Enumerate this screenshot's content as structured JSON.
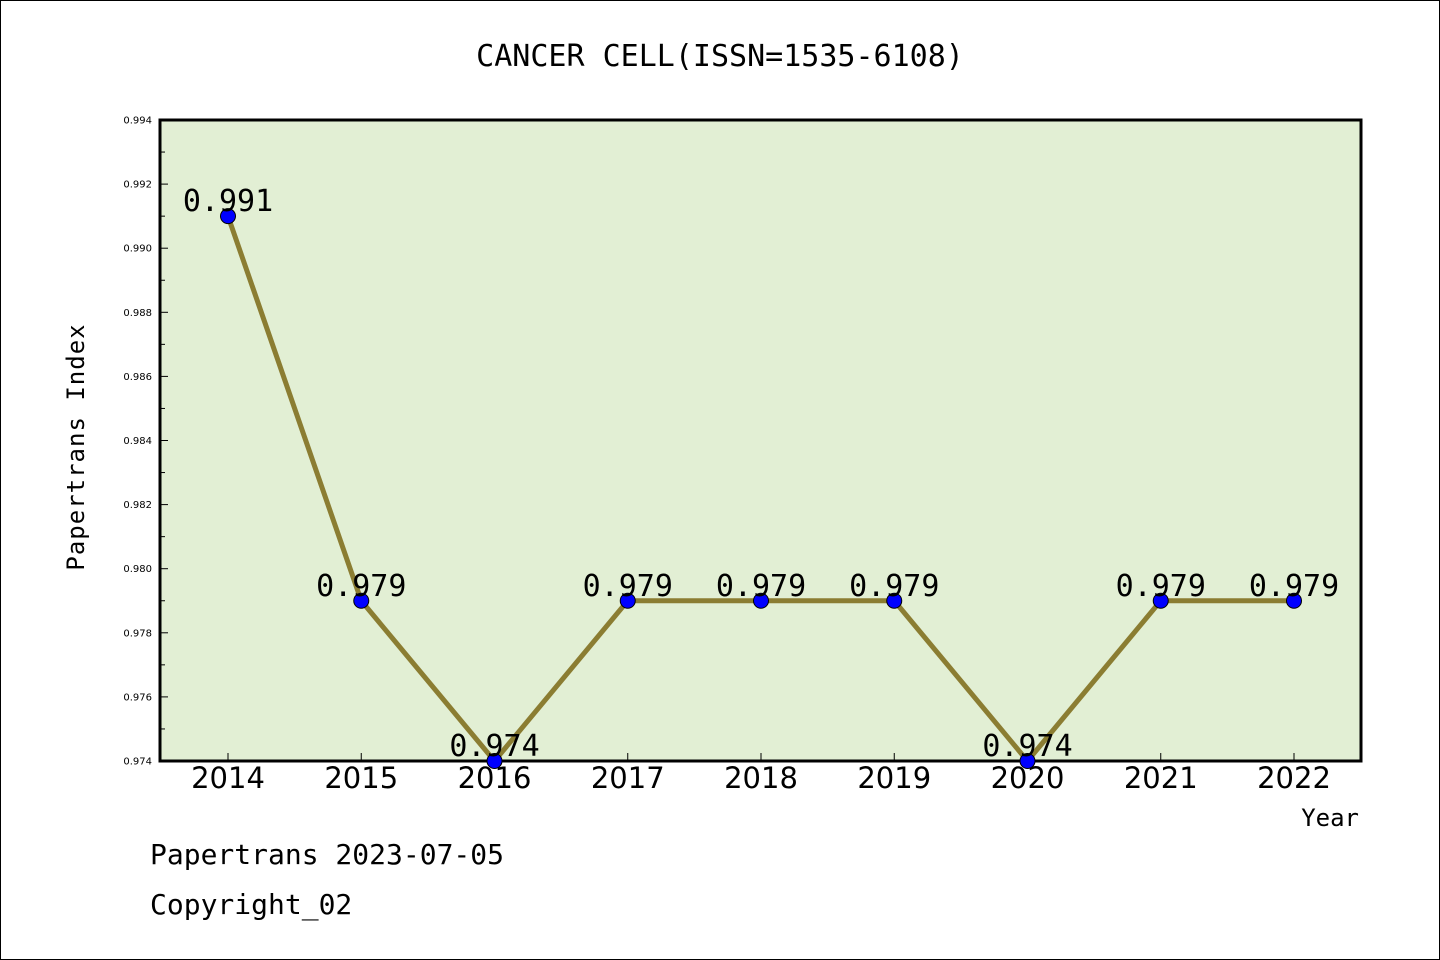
{
  "chart_data": {
    "type": "line",
    "title": "CANCER CELL(ISSN=1535-6108)",
    "xlabel": "Year",
    "ylabel": "Papertrans Index",
    "categories": [
      "2014",
      "2015",
      "2016",
      "2017",
      "2018",
      "2019",
      "2020",
      "2021",
      "2022"
    ],
    "values": [
      0.991,
      0.979,
      0.974,
      0.979,
      0.979,
      0.979,
      0.974,
      0.979,
      0.979
    ],
    "data_labels": [
      "0.991",
      "0.979",
      "0.974",
      "0.979",
      "0.979",
      "0.979",
      "0.974",
      "0.979",
      "0.979"
    ],
    "ylim": [
      0.974,
      0.994
    ],
    "yticks": [
      "0.974",
      "0.976",
      "0.978",
      "0.980",
      "0.982",
      "0.984",
      "0.986",
      "0.988",
      "0.990",
      "0.992",
      "0.994"
    ],
    "grid": false,
    "colors": {
      "plot_background": "#e2efd4",
      "line": "#8b7d32",
      "marker": "#0000ff"
    }
  },
  "footer": {
    "line1": "Papertrans 2023-07-05",
    "line2": "Copyright_02"
  }
}
